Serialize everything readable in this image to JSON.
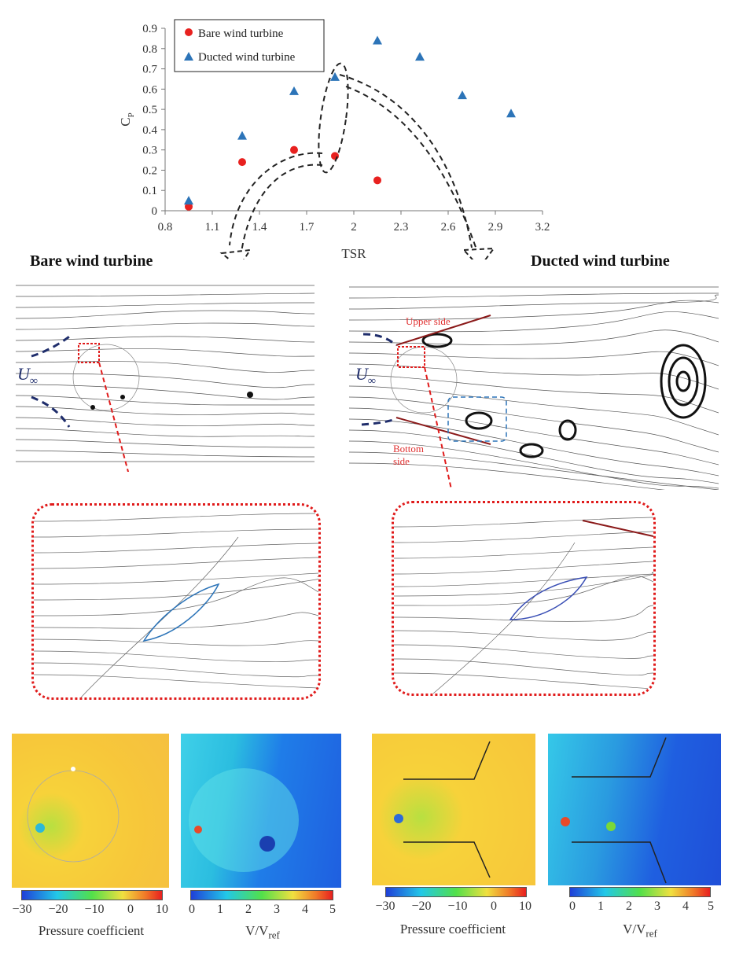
{
  "chart_data": {
    "type": "scatter",
    "title": "",
    "xlabel": "TSR",
    "ylabel": "C",
    "ylabel_sub": "P",
    "xlim": [
      0.8,
      3.2
    ],
    "ylim": [
      0,
      0.9
    ],
    "xticks": [
      "0.8",
      "1.1",
      "1.4",
      "1.7",
      "2",
      "2.3",
      "2.6",
      "2.9",
      "3.2"
    ],
    "yticks": [
      "0",
      "0.1",
      "0.2",
      "0.3",
      "0.4",
      "0.5",
      "0.6",
      "0.7",
      "0.8",
      "0.9"
    ],
    "grid": false,
    "legend_position": "top-left",
    "series": [
      {
        "name": "Bare wind turbine",
        "marker": "circle",
        "color": "#e8211f",
        "x": [
          0.95,
          1.29,
          1.62,
          1.88,
          2.15
        ],
        "y": [
          0.02,
          0.24,
          0.3,
          0.27,
          0.15
        ]
      },
      {
        "name": "Ducted wind turbine",
        "marker": "triangle",
        "color": "#2c74b8",
        "x": [
          0.95,
          1.29,
          1.62,
          1.88,
          2.15,
          2.42,
          2.69,
          3.0
        ],
        "y": [
          0.05,
          0.37,
          0.59,
          0.66,
          0.84,
          0.76,
          0.57,
          0.48
        ]
      }
    ]
  },
  "panels": {
    "bare_title": "Bare wind turbine",
    "ducted_title": "Ducted wind turbine",
    "u_inf": "U",
    "u_inf_sub": "∞",
    "upper_side": "Upper side",
    "bottom_side": "Bottom\nside"
  },
  "colorbars": [
    {
      "title": "Pressure coefficient",
      "ticks": [
        "−30",
        "−20",
        "−10",
        "0",
        "10"
      ]
    },
    {
      "title": "V/V",
      "title_sub": "ref",
      "ticks": [
        "0",
        "1",
        "2",
        "3",
        "4",
        "5"
      ]
    },
    {
      "title": "Pressure coefficient",
      "ticks": [
        "−30",
        "−20",
        "−10",
        "0",
        "10"
      ]
    },
    {
      "title": "V/V",
      "title_sub": "ref",
      "ticks": [
        "0",
        "1",
        "2",
        "3",
        "4",
        "5"
      ]
    }
  ],
  "colors": {
    "bare": "#e8211f",
    "ducted": "#2c74b8",
    "annotation_red": "#e01b1b",
    "arrow_navy": "#1f2d6b"
  }
}
